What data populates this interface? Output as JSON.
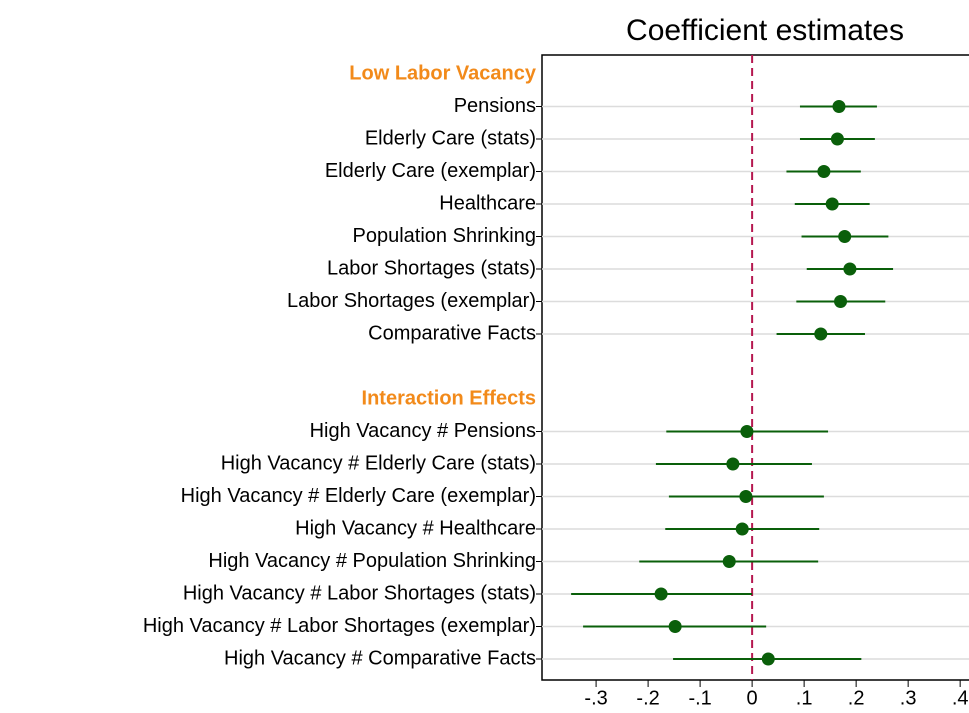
{
  "chart_data": {
    "type": "coefplot",
    "title": "Coefficient estimates",
    "color": "#0a5f0a",
    "header_color": "#f28a1a",
    "reference_line": 0,
    "reference_color": "#b5174f",
    "grid": true,
    "xlim": [
      -0.404,
      0.417
    ],
    "xticks": [
      {
        "value": -0.3,
        "label": "-.3"
      },
      {
        "value": -0.2,
        "label": "-.2"
      },
      {
        "value": -0.1,
        "label": "-.1"
      },
      0,
      {
        "value": 0.1,
        "label": ".1"
      },
      {
        "value": 0.2,
        "label": ".2"
      },
      {
        "value": 0.3,
        "label": ".3"
      },
      {
        "value": 0.4,
        "label": ".4"
      }
    ],
    "groups": [
      {
        "name": "Low Labor Vacancy",
        "categories": [
          "Pensions",
          "Elderly Care (stats)",
          "Elderly Care (exemplar)",
          "Healthcare",
          "Population Shrinking",
          "Labor Shortages (stats)",
          "Labor Shortages (exemplar)",
          "Comparative Facts"
        ],
        "values": [
          0.167,
          0.164,
          0.138,
          0.154,
          0.178,
          0.188,
          0.17,
          0.132
        ],
        "ci_low": [
          0.092,
          0.092,
          0.066,
          0.082,
          0.095,
          0.105,
          0.085,
          0.047
        ],
        "ci_high": [
          0.24,
          0.236,
          0.209,
          0.226,
          0.262,
          0.271,
          0.256,
          0.217
        ]
      },
      {
        "name": "Interaction Effects",
        "categories": [
          "High Vacancy # Pensions",
          "High Vacancy # Elderly Care (stats)",
          "High Vacancy # Elderly Care (exemplar)",
          "High Vacancy # Healthcare",
          "High Vacancy # Population Shrinking",
          "High Vacancy # Labor Shortages (stats)",
          "High Vacancy # Labor Shortages (exemplar)",
          "High Vacancy # Comparative Facts"
        ],
        "values": [
          -0.01,
          -0.037,
          -0.012,
          -0.019,
          -0.044,
          -0.175,
          -0.148,
          0.031
        ],
        "ci_low": [
          -0.165,
          -0.185,
          -0.16,
          -0.167,
          -0.217,
          -0.348,
          -0.325,
          -0.152
        ],
        "ci_high": [
          0.146,
          0.115,
          0.138,
          0.129,
          0.127,
          0.0,
          0.027,
          0.21
        ]
      }
    ]
  }
}
